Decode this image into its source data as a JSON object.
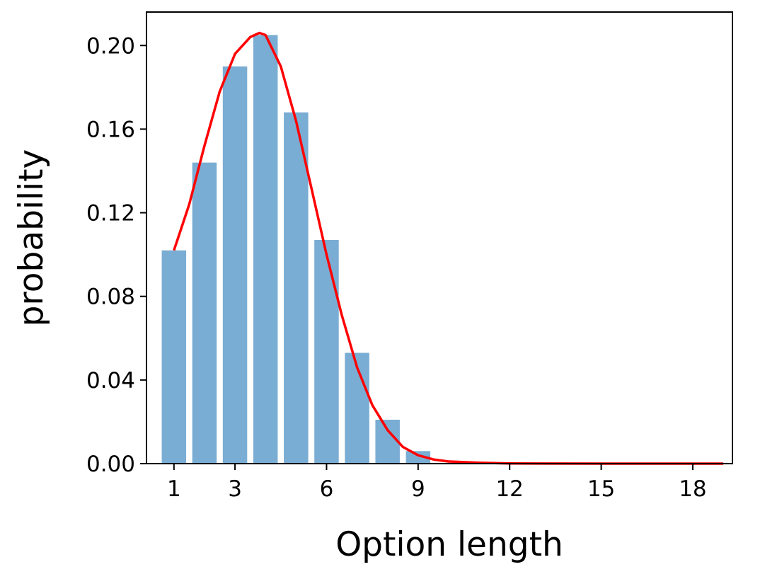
{
  "chart_data": {
    "type": "bar",
    "title": "",
    "xlabel": "Option length",
    "ylabel": "probability",
    "x": [
      1,
      2,
      3,
      4,
      5,
      6,
      7,
      8,
      9
    ],
    "values": [
      0.102,
      0.144,
      0.19,
      0.205,
      0.168,
      0.107,
      0.053,
      0.021,
      0.006
    ],
    "xlim": [
      0.1,
      19.3
    ],
    "ylim": [
      0,
      0.216
    ],
    "xticks": [
      1,
      3,
      6,
      9,
      12,
      15,
      18
    ],
    "yticks": [
      0.0,
      0.04,
      0.08,
      0.12,
      0.16,
      0.2
    ],
    "ytick_labels": [
      "0.00",
      "0.04",
      "0.08",
      "0.12",
      "0.16",
      "0.20"
    ],
    "grid": false,
    "bar_color": "#7aadd3",
    "curve": {
      "type": "line",
      "color": "#ff0000",
      "x": [
        1,
        1.5,
        2,
        2.5,
        3,
        3.5,
        3.8,
        4,
        4.5,
        5,
        5.5,
        6,
        6.5,
        7,
        7.5,
        8,
        8.5,
        9,
        9.5,
        10,
        11,
        12,
        13,
        15,
        17,
        19
      ],
      "y": [
        0.102,
        0.124,
        0.152,
        0.178,
        0.196,
        0.204,
        0.206,
        0.205,
        0.19,
        0.164,
        0.132,
        0.1,
        0.071,
        0.046,
        0.028,
        0.016,
        0.008,
        0.004,
        0.002,
        0.001,
        0.0004,
        0.0001,
        4e-05,
        0.0,
        0.0,
        0.0
      ]
    }
  }
}
